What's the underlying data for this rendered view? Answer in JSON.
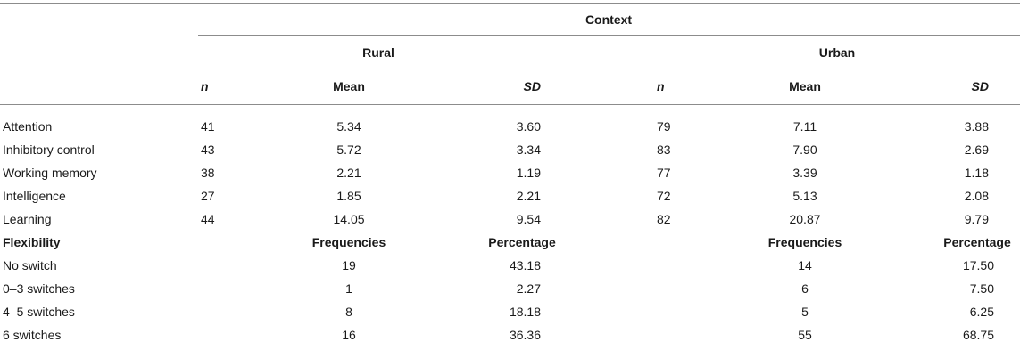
{
  "header": {
    "context": "Context",
    "rural": "Rural",
    "urban": "Urban",
    "cols": [
      "n",
      "Mean",
      "SD",
      "n",
      "Mean",
      "SD"
    ]
  },
  "rows": [
    {
      "label": "Attention",
      "rn": "41",
      "rmean": "5.34",
      "rsd": "3.60",
      "un": "79",
      "umean": "7.11",
      "usd": "3.88"
    },
    {
      "label": "Inhibitory control",
      "rn": "43",
      "rmean": "5.72",
      "rsd": "3.34",
      "un": "83",
      "umean": "7.90",
      "usd": "2.69"
    },
    {
      "label": "Working memory",
      "rn": "38",
      "rmean": "2.21",
      "rsd": "1.19",
      "un": "77",
      "umean": "3.39",
      "usd": "1.18"
    },
    {
      "label": "Intelligence",
      "rn": "27",
      "rmean": "1.85",
      "rsd": "2.21",
      "un": "72",
      "umean": "5.13",
      "usd": "2.08"
    },
    {
      "label": "Learning",
      "rn": "44",
      "rmean": "14.05",
      "rsd": "9.54",
      "un": "82",
      "umean": "20.87",
      "usd": "9.79"
    }
  ],
  "flex_header": {
    "label": "Flexibility",
    "rfreq": "Frequencies",
    "rpct": "Percentage",
    "ufreq": "Frequencies",
    "upct": "Percentage"
  },
  "flex_rows": [
    {
      "label": "No switch",
      "rfreq": "19",
      "rpct": "43.18",
      "ufreq": "14",
      "upct": "17.50"
    },
    {
      "label": "0–3 switches",
      "rfreq": "1",
      "rpct": "2.27",
      "ufreq": "6",
      "upct": "7.50"
    },
    {
      "label": "4–5 switches",
      "rfreq": "8",
      "rpct": "18.18",
      "ufreq": "5",
      "upct": "6.25"
    },
    {
      "label": "6 switches",
      "rfreq": "16",
      "rpct": "36.36",
      "ufreq": "55",
      "upct": "68.75"
    }
  ]
}
